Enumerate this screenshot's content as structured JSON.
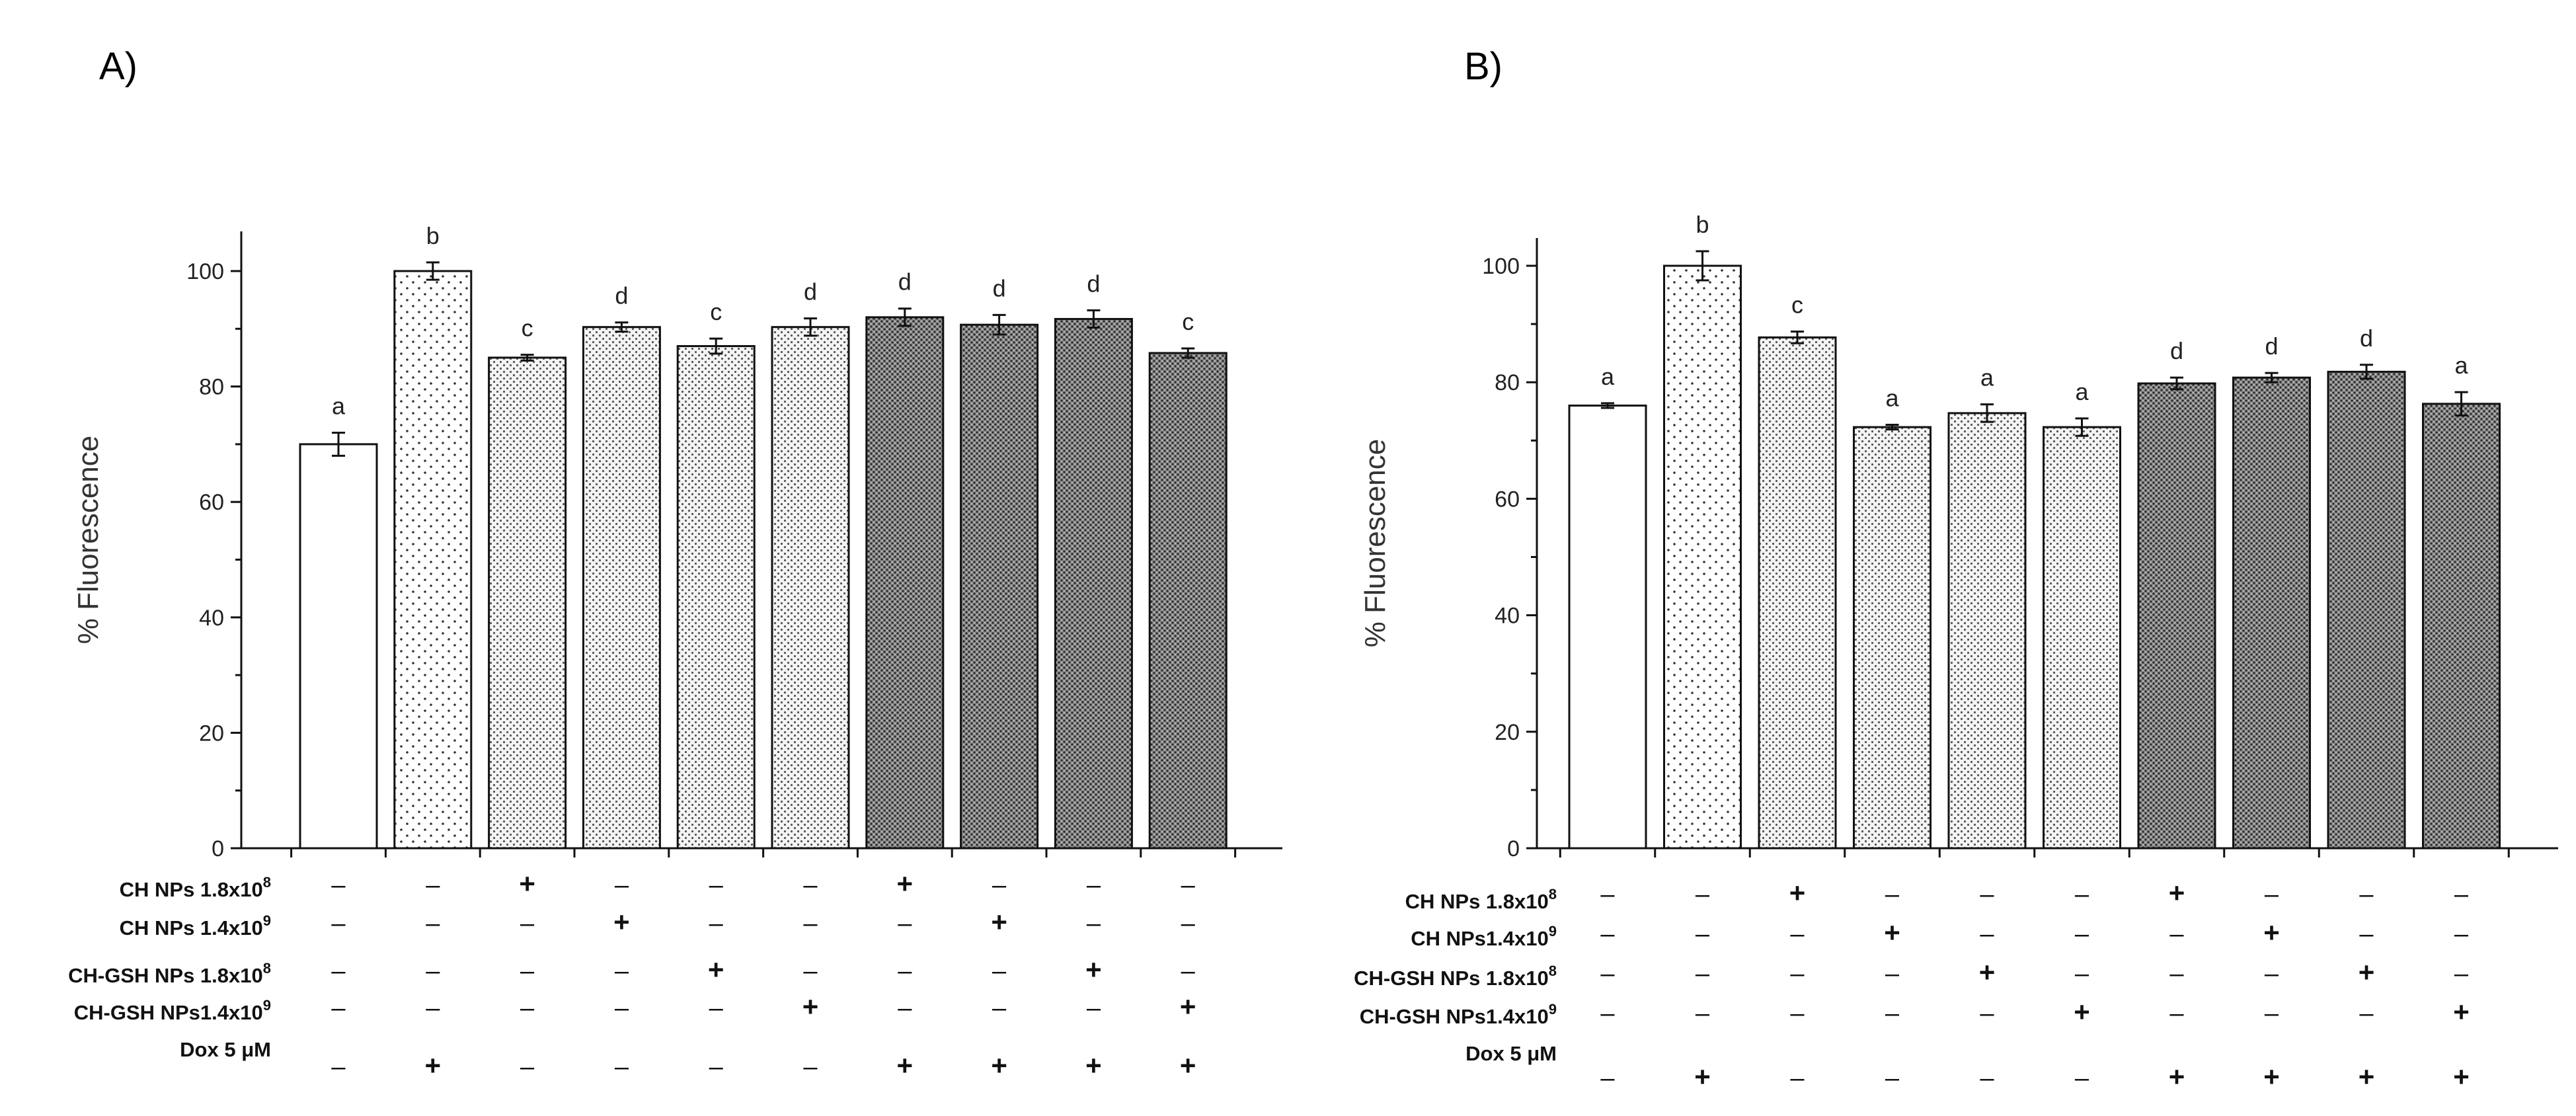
{
  "chart_data": [
    {
      "type": "bar",
      "panel": "A)",
      "ylabel": "% Fluorescence",
      "xlabel": "",
      "ylim": [
        0,
        105
      ],
      "yticks": [
        "0",
        "20",
        "40",
        "60",
        "80",
        "100"
      ],
      "bars": [
        {
          "value": 70,
          "error": 2.0,
          "label": "a",
          "pattern": "open"
        },
        {
          "value": 100,
          "error": 1.5,
          "label": "b",
          "pattern": "sparse"
        },
        {
          "value": 85,
          "error": 0.5,
          "label": "c",
          "pattern": "light"
        },
        {
          "value": 90.3,
          "error": 0.8,
          "label": "d",
          "pattern": "light"
        },
        {
          "value": 87,
          "error": 1.3,
          "label": "c",
          "pattern": "light"
        },
        {
          "value": 90.3,
          "error": 1.5,
          "label": "d",
          "pattern": "light"
        },
        {
          "value": 92,
          "error": 1.5,
          "label": "d",
          "pattern": "dark"
        },
        {
          "value": 90.7,
          "error": 1.7,
          "label": "d",
          "pattern": "dark"
        },
        {
          "value": 91.7,
          "error": 1.5,
          "label": "d",
          "pattern": "dark"
        },
        {
          "value": 85.8,
          "error": 0.8,
          "label": "c",
          "pattern": "dark"
        }
      ],
      "treatment_rows": [
        {
          "label": "CH NPs 1.8x10",
          "exp": "8",
          "marks": [
            "–",
            "–",
            "+",
            "–",
            "–",
            "–",
            "+",
            "–",
            "–",
            "–"
          ]
        },
        {
          "label": "CH NPs 1.4x10",
          "exp": "9",
          "marks": [
            "–",
            "–",
            "–",
            "+",
            "–",
            "–",
            "–",
            "+",
            "–",
            "–"
          ]
        },
        {
          "label": "CH-GSH NPs 1.8x10",
          "exp": "8",
          "marks": [
            "–",
            "–",
            "–",
            "–",
            "+",
            "–",
            "–",
            "–",
            "+",
            "–"
          ]
        },
        {
          "label": "CH-GSH NPs1.4x10",
          "exp": "9",
          "marks": [
            "–",
            "–",
            "–",
            "–",
            "–",
            "+",
            "–",
            "–",
            "–",
            "+"
          ]
        },
        {
          "label": "Dox 5 μM",
          "exp": "",
          "marks": [
            "–",
            "+",
            "–",
            "–",
            "–",
            "–",
            "+",
            "+",
            "+",
            "+"
          ]
        }
      ]
    },
    {
      "type": "bar",
      "panel": "B)",
      "ylabel": "% Fluorescence",
      "xlabel": "",
      "ylim": [
        0,
        105
      ],
      "yticks": [
        "0",
        "20",
        "40",
        "60",
        "80",
        "100"
      ],
      "bars": [
        {
          "value": 76,
          "error": 0.4,
          "label": "a",
          "pattern": "open"
        },
        {
          "value": 100,
          "error": 2.5,
          "label": "b",
          "pattern": "sparse"
        },
        {
          "value": 87.7,
          "error": 1.0,
          "label": "c",
          "pattern": "light"
        },
        {
          "value": 72.3,
          "error": 0.4,
          "label": "a",
          "pattern": "light"
        },
        {
          "value": 74.7,
          "error": 1.5,
          "label": "a",
          "pattern": "light"
        },
        {
          "value": 72.3,
          "error": 1.5,
          "label": "a",
          "pattern": "light"
        },
        {
          "value": 79.8,
          "error": 1.0,
          "label": "d",
          "pattern": "dark"
        },
        {
          "value": 80.8,
          "error": 0.8,
          "label": "d",
          "pattern": "dark"
        },
        {
          "value": 81.8,
          "error": 1.2,
          "label": "d",
          "pattern": "dark"
        },
        {
          "value": 76.3,
          "error": 2.0,
          "label": "a",
          "pattern": "dark"
        }
      ],
      "treatment_rows": [
        {
          "label": "CH NPs 1.8x10",
          "exp": "8",
          "marks": [
            "–",
            "–",
            "+",
            "–",
            "–",
            "–",
            "+",
            "–",
            "–",
            "–"
          ]
        },
        {
          "label": "CH NPs1.4x10",
          "exp": "9",
          "marks": [
            "–",
            "–",
            "–",
            "+",
            "–",
            "–",
            "–",
            "+",
            "–",
            "–"
          ]
        },
        {
          "label": "CH-GSH NPs 1.8x10",
          "exp": "8",
          "marks": [
            "–",
            "–",
            "–",
            "–",
            "+",
            "–",
            "–",
            "–",
            "+",
            "–"
          ]
        },
        {
          "label": "CH-GSH NPs1.4x10",
          "exp": "9",
          "marks": [
            "–",
            "–",
            "–",
            "–",
            "–",
            "+",
            "–",
            "–",
            "–",
            "+"
          ]
        },
        {
          "label": "Dox 5 μM",
          "exp": "",
          "marks": [
            "–",
            "+",
            "–",
            "–",
            "–",
            "–",
            "+",
            "+",
            "+",
            "+"
          ]
        }
      ]
    }
  ]
}
